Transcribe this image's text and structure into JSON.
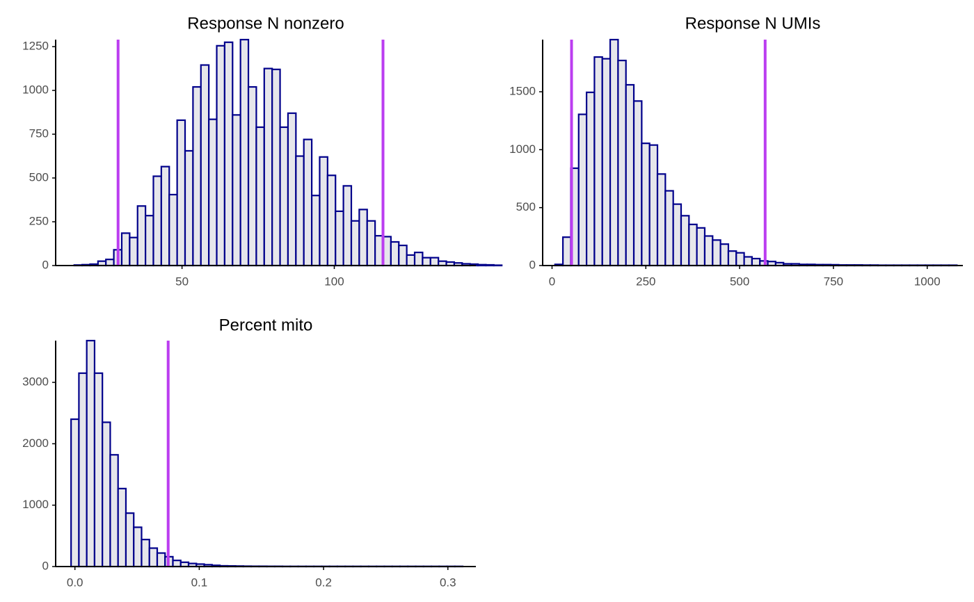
{
  "colors": {
    "bar_fill": "#e6e6eb",
    "bar_stroke": "#00008b",
    "threshold_line": "#bb3df0",
    "axis": "#000000",
    "tick_label": "#4d4d4d"
  },
  "chart_data": [
    {
      "type": "bar",
      "subtype": "histogram",
      "title": "Response N nonzero",
      "xlabel": "",
      "ylabel": "",
      "xlim": [
        8.5,
        146.5
      ],
      "ylim": [
        0,
        1290
      ],
      "x_ticks": [
        50,
        100
      ],
      "x_tick_labels": [
        "50",
        "100"
      ],
      "y_ticks": [
        0,
        250,
        500,
        750,
        1000,
        1250
      ],
      "y_tick_labels": [
        "0",
        "250",
        "500",
        "750",
        "1000",
        "1250"
      ],
      "bin_start": 14.6,
      "bin_width": 2.6,
      "values": [
        3,
        5,
        8,
        25,
        35,
        90,
        185,
        160,
        340,
        285,
        510,
        565,
        405,
        830,
        655,
        1020,
        1145,
        835,
        1255,
        1275,
        860,
        1290,
        1020,
        790,
        1125,
        1120,
        790,
        870,
        625,
        720,
        400,
        620,
        515,
        310,
        455,
        255,
        320,
        255,
        170,
        165,
        135,
        115,
        60,
        75,
        45,
        45,
        25,
        20,
        15,
        10,
        8,
        5,
        4,
        2
      ],
      "thresholds": [
        29.0,
        116.0
      ],
      "grid": false,
      "legend": "none"
    },
    {
      "type": "bar",
      "subtype": "histogram",
      "title": "Response N UMIs",
      "xlabel": "",
      "ylabel": "",
      "xlim": [
        -25,
        1095
      ],
      "ylim": [
        0,
        1950
      ],
      "x_ticks": [
        0,
        250,
        500,
        750,
        1000
      ],
      "x_tick_labels": [
        "0",
        "250",
        "500",
        "750",
        "1000"
      ],
      "y_ticks": [
        0,
        500,
        1000,
        1500
      ],
      "y_tick_labels": [
        "0",
        "500",
        "1000",
        "1500"
      ],
      "bin_start": 8,
      "bin_width": 21,
      "values": [
        10,
        245,
        840,
        1305,
        1495,
        1800,
        1785,
        1950,
        1770,
        1560,
        1420,
        1055,
        1040,
        790,
        645,
        530,
        430,
        355,
        325,
        255,
        220,
        185,
        125,
        110,
        75,
        60,
        40,
        35,
        25,
        15,
        15,
        10,
        10,
        8,
        8,
        7,
        5,
        5,
        5,
        4,
        4,
        3,
        3,
        3,
        3,
        3,
        3,
        3,
        3,
        3,
        3
      ],
      "thresholds": [
        52,
        568
      ],
      "grid": false,
      "legend": "none"
    },
    {
      "type": "bar",
      "subtype": "histogram",
      "title": "Percent mito",
      "xlabel": "",
      "ylabel": "",
      "xlim": [
        -0.0155,
        0.3225
      ],
      "ylim": [
        0,
        3680
      ],
      "x_ticks": [
        0.0,
        0.1,
        0.2,
        0.3
      ],
      "x_tick_labels": [
        "0.0",
        "0.1",
        "0.2",
        "0.3"
      ],
      "y_ticks": [
        0,
        1000,
        2000,
        3000
      ],
      "y_tick_labels": [
        "0",
        "1000",
        "2000",
        "3000"
      ],
      "bin_start": -0.0031,
      "bin_width": 0.0063,
      "values": [
        2400,
        3150,
        3680,
        3150,
        2350,
        1820,
        1270,
        870,
        640,
        440,
        300,
        220,
        160,
        100,
        70,
        50,
        40,
        30,
        20,
        12,
        10,
        8,
        6,
        5,
        5,
        4,
        4,
        3,
        3,
        3,
        3,
        3,
        3,
        3,
        3,
        3,
        3,
        3,
        3,
        3,
        3,
        3,
        3,
        3,
        3,
        3,
        3,
        3,
        3,
        3
      ],
      "thresholds": [
        0.075
      ],
      "grid": false,
      "legend": "none"
    }
  ]
}
